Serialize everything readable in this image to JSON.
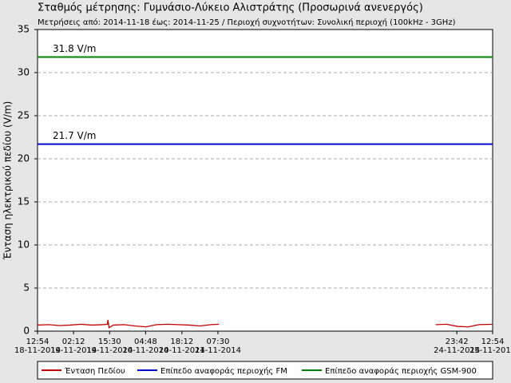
{
  "chart_data": {
    "type": "line",
    "title": "Σταθμός μέτρησης: Γυμνάσιο-Λύκειο Αλιστράτης (Προσωρινά ανενεργός)",
    "subtitle": "Μετρήσεις από: 2014-11-18 έως: 2014-11-25 / Περιοχή συχνοτήτων: Συνολική περιοχή (100kHz - 3GHz)",
    "y_label": "Ένταση ηλεκτρικού πεδίου (V/m)",
    "xlim": [
      0,
      168
    ],
    "ylim": [
      0,
      35
    ],
    "yticks": [
      0,
      5,
      10,
      15,
      20,
      25,
      30,
      35
    ],
    "xticks": [
      {
        "value": 0,
        "label": "12:54 18-11-2014"
      },
      {
        "value": 13.3,
        "label": "02:12 19-11-2014"
      },
      {
        "value": 26.6,
        "label": "15:30 19-11-2014"
      },
      {
        "value": 39.9,
        "label": "04:48 20-11-2014"
      },
      {
        "value": 53.3,
        "label": "18:12 20-11-2014"
      },
      {
        "value": 66.6,
        "label": "07:30 21-11-2014"
      },
      {
        "value": 154.8,
        "label": "23:42 24-11-2014"
      },
      {
        "value": 168,
        "label": "12:54 25-11-2014"
      }
    ],
    "grid": true,
    "series": [
      {
        "name": "Ένταση Πεδίου",
        "color": "#c00000",
        "x": [
          0,
          4,
          8,
          12,
          16,
          20,
          24,
          25.8,
          26,
          26.4,
          28,
          32,
          36,
          40,
          44,
          48,
          52,
          56,
          60,
          64,
          67,
          110,
          147,
          151,
          155,
          159,
          163,
          168
        ],
        "values": [
          0.7,
          0.75,
          0.65,
          0.7,
          0.8,
          0.7,
          0.75,
          0.8,
          1.3,
          0.4,
          0.7,
          0.75,
          0.6,
          0.5,
          0.75,
          0.8,
          0.75,
          0.7,
          0.6,
          0.75,
          0.8,
          null,
          0.75,
          0.8,
          0.55,
          0.5,
          0.75,
          0.8
        ]
      },
      {
        "name": "Επίπεδο αναφοράς περιοχής FM",
        "color": "#0000cc",
        "x": [
          0,
          168
        ],
        "values": [
          21.7,
          21.7
        ],
        "label": "21.7 V/m"
      },
      {
        "name": "Επίπεδο αναφοράς περιοχής GSM-900",
        "color": "#008000",
        "x": [
          0,
          168
        ],
        "values": [
          31.8,
          31.8
        ],
        "label": "31.8 V/m"
      }
    ]
  }
}
